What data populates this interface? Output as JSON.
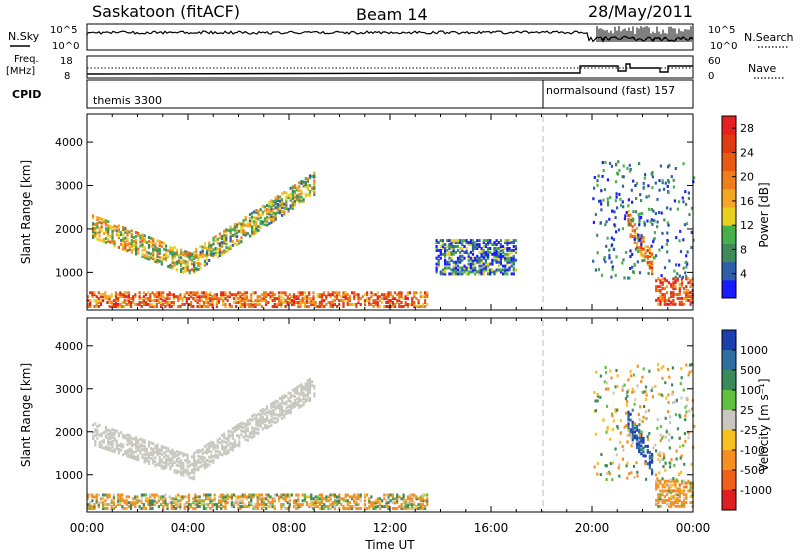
{
  "header": {
    "station": "Saskatoon (fitACF)",
    "beam": "Beam 14",
    "date": "28/May/2011"
  },
  "top_panels": {
    "nsky_label": "N.Sky",
    "nsky_ticks": [
      "10^5",
      "10^0"
    ],
    "nsearch_label": "N.Search",
    "nsearch_ticks": [
      "10^5",
      "10^0"
    ],
    "freq_label": "Freq.",
    "freq_unit": "[MHz]",
    "freq_ticks": [
      "18",
      "8"
    ],
    "nave_label": "Nave",
    "nave_ticks": [
      "60",
      "0"
    ],
    "cpid_label": "CPID",
    "cpid_segments": [
      {
        "name": "themis 3300",
        "start_hour": 0
      },
      {
        "name": "normalsound (fast) 157",
        "start_hour": 18
      }
    ]
  },
  "chart_data": [
    {
      "type": "heatmap",
      "title": "",
      "xlabel": "Time UT",
      "ylabel": "Slant Range [km]",
      "x_range_hours": [
        0,
        24
      ],
      "x_ticks": [
        "00:00",
        "04:00",
        "08:00",
        "12:00",
        "16:00",
        "20:00",
        "00:00"
      ],
      "y_range": [
        180,
        4600
      ],
      "y_ticks": [
        1000,
        2000,
        3000,
        4000
      ],
      "colorbar_label": "Power [dB]",
      "colorbar_ticks": [
        4,
        8,
        12,
        16,
        20,
        24,
        28
      ],
      "colorbar_range": [
        0,
        30
      ],
      "colors": [
        "#1a1aff",
        "#2e5ea8",
        "#3d8a5a",
        "#46b04a",
        "#e8d020",
        "#f5a623",
        "#f07d1a",
        "#e85a14",
        "#e03a10",
        "#e82020"
      ],
      "regions": [
        {
          "name": "main arc",
          "x": [
            0.2,
            4.2
          ],
          "y_top": [
            2100,
            1200
          ],
          "value": 14
        },
        {
          "name": "rising arc",
          "x": [
            4.2,
            9.0
          ],
          "y_top": [
            1300,
            3100
          ],
          "value": 12
        },
        {
          "name": "near-range band",
          "x": [
            0.0,
            13.5
          ],
          "y": [
            250,
            600
          ],
          "value": 22
        },
        {
          "name": "afternoon weak echoes",
          "x": [
            13.8,
            17.0
          ],
          "y": [
            1000,
            1800
          ],
          "value": 6
        },
        {
          "name": "evening streak",
          "x": [
            21.4,
            22.4
          ],
          "y_top": [
            2200,
            1200
          ],
          "value": 20
        },
        {
          "name": "late near-range",
          "x": [
            22.5,
            24.0
          ],
          "y": [
            300,
            900
          ],
          "value": 24
        }
      ]
    },
    {
      "type": "heatmap",
      "title": "",
      "xlabel": "Time UT",
      "ylabel": "Slant Range [km]",
      "x_range_hours": [
        0,
        24
      ],
      "x_ticks": [
        "00:00",
        "04:00",
        "08:00",
        "12:00",
        "16:00",
        "20:00",
        "00:00"
      ],
      "y_range": [
        180,
        4600
      ],
      "y_ticks": [
        1000,
        2000,
        3000,
        4000
      ],
      "colorbar_label": "Velocity [m s⁻¹]",
      "colorbar_ticks": [
        "1000",
        "500",
        "100",
        "25",
        "-25",
        "-100",
        "-500",
        "-1000"
      ],
      "colors": [
        "#1c3fb0",
        "#2e6ea0",
        "#3a8a5a",
        "#60c040",
        "#c8c8c0",
        "#f5c020",
        "#f59020",
        "#f06018",
        "#e02020"
      ],
      "ground_scatter_color": "#c8c8c0",
      "regions": [
        {
          "name": "ground scatter arc",
          "x": [
            0.2,
            4.2
          ],
          "y_top": [
            2000,
            1200
          ],
          "value": 0
        },
        {
          "name": "rising ground scatter",
          "x": [
            4.2,
            9.0
          ],
          "y_top": [
            1300,
            3100
          ],
          "value": 0
        },
        {
          "name": "near-range mixed",
          "x": [
            0.0,
            13.5
          ],
          "y": [
            250,
            600
          ],
          "value": -60
        },
        {
          "name": "evening blue streak",
          "x": [
            21.4,
            22.4
          ],
          "y_top": [
            2300,
            1200
          ],
          "value": 700
        },
        {
          "name": "late near-range orange",
          "x": [
            22.5,
            24.0
          ],
          "y": [
            300,
            900
          ],
          "value": -120
        }
      ]
    }
  ]
}
